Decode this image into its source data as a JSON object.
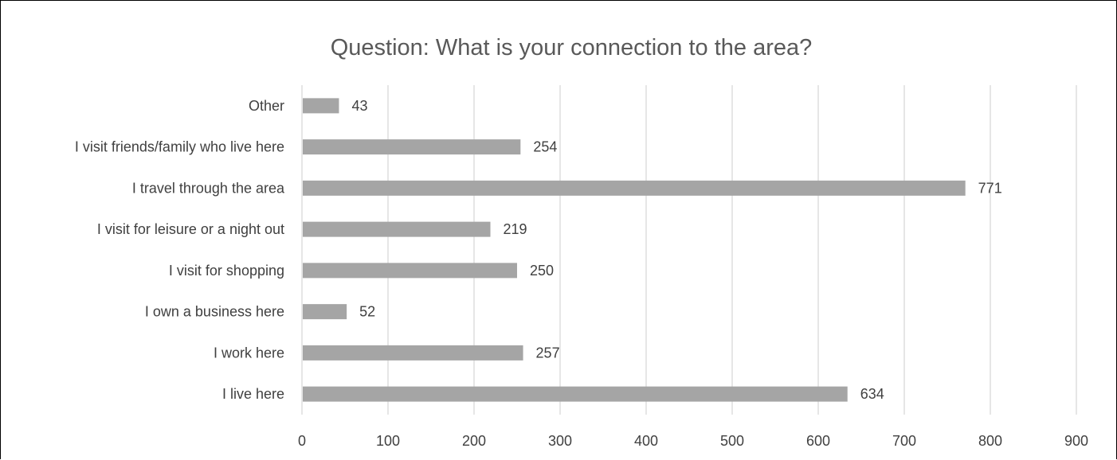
{
  "chart_data": {
    "type": "bar",
    "orientation": "horizontal",
    "title": "Question: What is your connection to the area?",
    "categories": [
      "Other",
      "I visit friends/family who live here",
      "I travel through the area",
      "I visit for leisure or a night out",
      "I visit for shopping",
      "I own a business here",
      "I work here",
      "I live here"
    ],
    "values": [
      43,
      254,
      771,
      219,
      250,
      52,
      257,
      634
    ],
    "xlim": [
      0,
      900
    ],
    "ticks": [
      "0",
      "100",
      "200",
      "300",
      "400",
      "500",
      "600",
      "700",
      "800",
      "900"
    ],
    "grid": true,
    "legend": "none",
    "bar_color": "#a5a5a5",
    "data_labels": true
  }
}
